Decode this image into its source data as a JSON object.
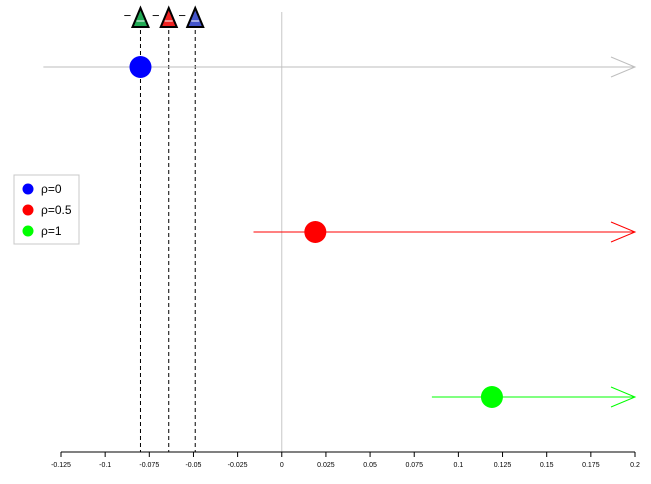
{
  "chart_data": {
    "type": "scatter",
    "xlim": [
      -0.125,
      0.2
    ],
    "x_ticks": [
      "-0.125",
      "-0.1",
      "-0.075",
      "-0.05",
      "-0.025",
      "0",
      "0.025",
      "0.05",
      "0.075",
      "0.1",
      "0.125",
      "0.15",
      "0.175",
      "0.2"
    ],
    "x_tick_values": [
      -0.125,
      -0.1,
      -0.075,
      -0.05,
      -0.025,
      0,
      0.025,
      0.05,
      0.075,
      0.1,
      0.125,
      0.15,
      0.175,
      0.2
    ],
    "zero_line": 0,
    "series": [
      {
        "name": "ρ=0",
        "color": "#0000ff",
        "line_color": "#bebebe",
        "point": -0.08,
        "interval_start": -0.135,
        "interval_end": 0.2
      },
      {
        "name": "ρ=0.5",
        "color": "#ff0000",
        "line_color": "#ff0000",
        "point": 0.019,
        "interval_start": -0.016,
        "interval_end": 0.2
      },
      {
        "name": "ρ=1",
        "color": "#00ff00",
        "line_color": "#00ff00",
        "point": 0.119,
        "interval_start": 0.085,
        "interval_end": 0.2
      }
    ],
    "thresholds": [
      {
        "value": -0.08,
        "color": "#22aa55",
        "sign": "−"
      },
      {
        "value": -0.064,
        "color": "#ee2222",
        "sign": "−"
      },
      {
        "value": -0.049,
        "color": "#4455cc",
        "sign": "−"
      }
    ],
    "legend": {
      "position": "left",
      "entries": [
        "ρ=0",
        "ρ=0.5",
        "ρ=1"
      ],
      "colors": [
        "#0000ff",
        "#ff0000",
        "#00ff00"
      ]
    },
    "grid": false
  }
}
